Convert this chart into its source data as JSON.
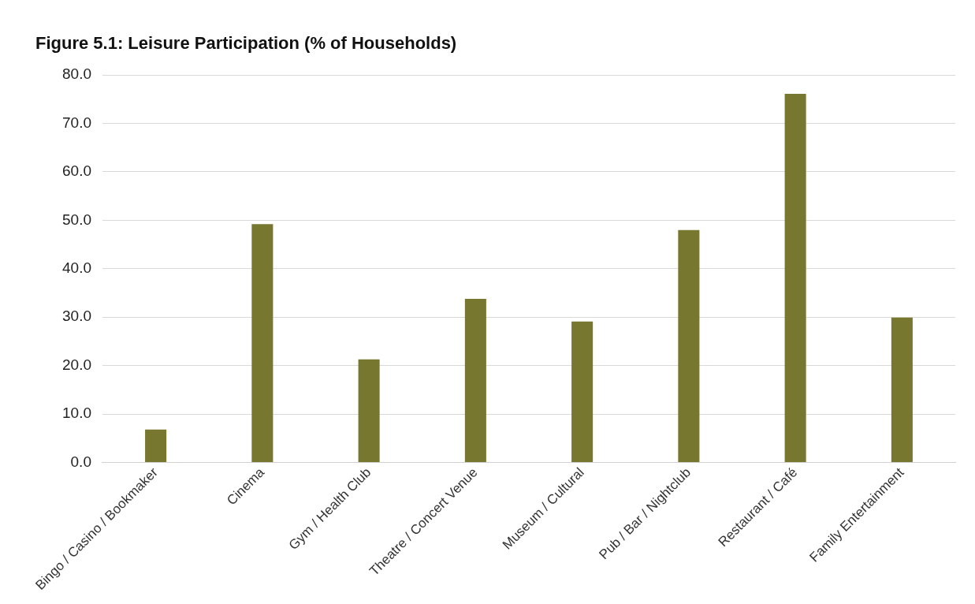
{
  "chart_data": {
    "type": "bar",
    "title": "Figure 5.1:  Leisure Participation (% of Households)",
    "categories": [
      "Bingo / Casino / Bookmaker",
      "Cinema",
      "Gym / Health Club",
      "Theatre / Concert Venue",
      "Museum / Cultural",
      "Pub / Bar / Nightclub",
      "Restaurant / Café",
      "Family Entertainment"
    ],
    "values": [
      6.8,
      49.2,
      21.3,
      33.8,
      29.1,
      48.0,
      76.1,
      29.9
    ],
    "color": "#77772f",
    "ylim": [
      0,
      80
    ],
    "yticks": [
      {
        "value": 0,
        "label": "0.0"
      },
      {
        "value": 10,
        "label": "10.0"
      },
      {
        "value": 20,
        "label": "20.0"
      },
      {
        "value": 30,
        "label": "30.0"
      },
      {
        "value": 40,
        "label": "40.0"
      },
      {
        "value": 50,
        "label": "50.0"
      },
      {
        "value": 60,
        "label": "60.0"
      },
      {
        "value": 70,
        "label": "70.0"
      },
      {
        "value": 80,
        "label": "80.0"
      }
    ],
    "grid": "y",
    "legend": false
  }
}
